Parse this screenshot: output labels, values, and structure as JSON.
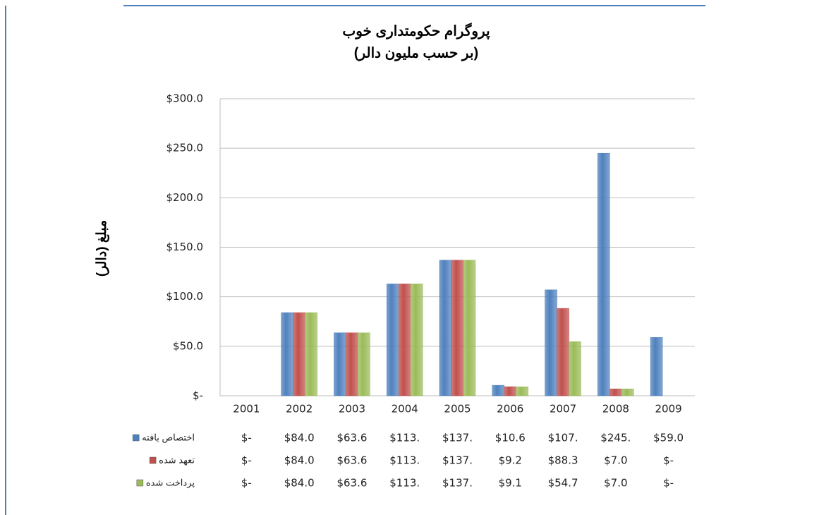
{
  "chart_data": {
    "type": "bar",
    "title": "پروگرام حکومتداری خوب",
    "subtitle": "(بر حسب ملیون دالر)",
    "y_label": "مبلغ (دالر)",
    "categories": [
      "2001",
      "2002",
      "2003",
      "2004",
      "2005",
      "2006",
      "2007",
      "2008",
      "2009"
    ],
    "series": [
      {
        "name": "اختصاص یافته",
        "color": "#4f81bd",
        "values": [
          0,
          84.0,
          63.6,
          113,
          137,
          10.6,
          107,
          245,
          59.0
        ],
        "value_labels": [
          "$-",
          "$84.0",
          "$63.6",
          "$113.",
          "$137.",
          "$10.6",
          "$107.",
          "$245.",
          "$59.0"
        ]
      },
      {
        "name": "تعهد شده",
        "color": "#c0504d",
        "values": [
          0,
          84.0,
          63.6,
          113,
          137,
          9.2,
          88.3,
          7.0,
          0
        ],
        "value_labels": [
          "$-",
          "$84.0",
          "$63.6",
          "$113.",
          "$137.",
          "$9.2",
          "$88.3",
          "$7.0",
          "$-"
        ]
      },
      {
        "name": "پرداخت شده",
        "color": "#9bbb59",
        "values": [
          0,
          84.0,
          63.6,
          113,
          137,
          9.1,
          54.7,
          7.0,
          0
        ],
        "value_labels": [
          "$-",
          "$84.0",
          "$63.6",
          "$113.",
          "$137.",
          "$9.1",
          "$54.7",
          "$7.0",
          "$-"
        ]
      }
    ],
    "ylim": [
      0,
      300
    ],
    "yticks": [
      {
        "value": 0,
        "label": "$-"
      },
      {
        "value": 50,
        "label": "$50.0"
      },
      {
        "value": 100,
        "label": "$100.0"
      },
      {
        "value": 150,
        "label": "$150.0"
      },
      {
        "value": 200,
        "label": "$200.0"
      },
      {
        "value": 250,
        "label": "$250.0"
      },
      {
        "value": 300,
        "label": "$300.0"
      }
    ],
    "grid": true
  }
}
